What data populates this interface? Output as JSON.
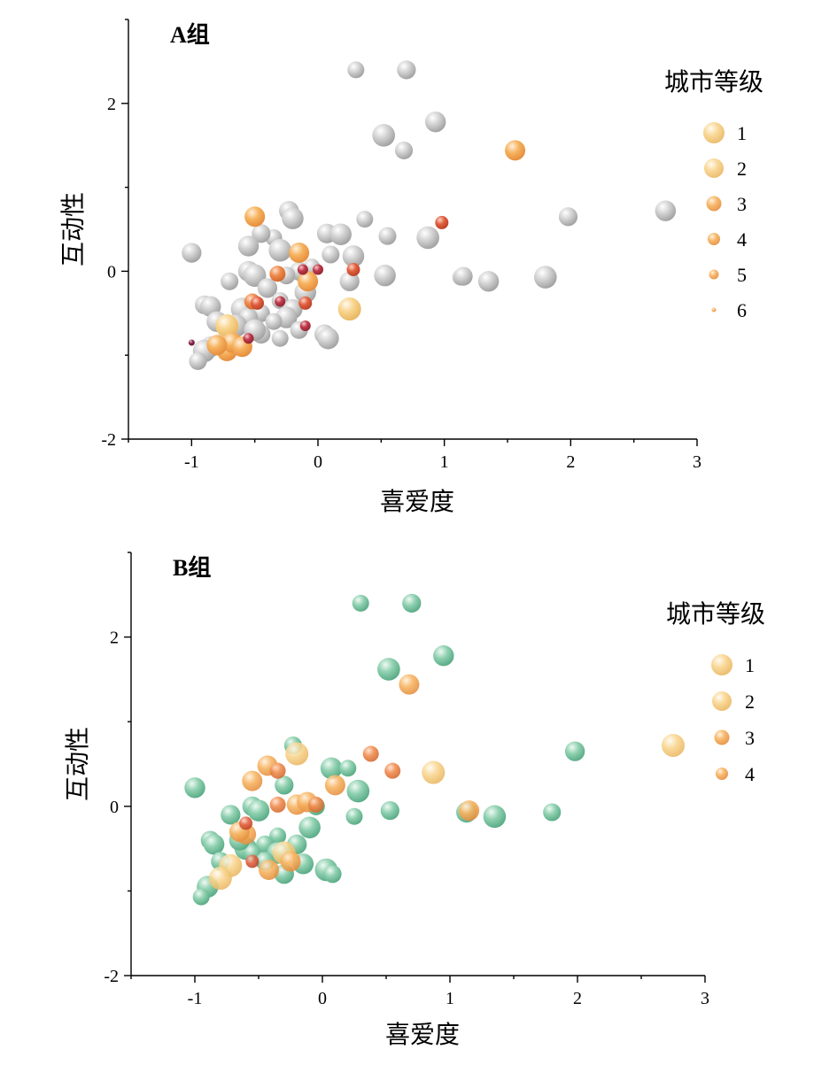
{
  "colors": {
    "gray": "#c4c4c4",
    "green": "#8fd0b0",
    "level_colors": [
      "#f8d48c",
      "#f6b25e",
      "#ef8a4c",
      "#e0603f",
      "#c0394a",
      "#8e2a4e"
    ]
  },
  "chart_data": [
    {
      "type": "scatter",
      "title": "A组",
      "xlabel": "喜爱度",
      "ylabel": "互动性",
      "xlim": [
        -1.5,
        3
      ],
      "ylim": [
        -2,
        3
      ],
      "x_ticks": [
        "-1",
        "0",
        "1",
        "2",
        "3"
      ],
      "y_ticks": [
        "-2",
        "0",
        "2"
      ],
      "legend": {
        "title": "城市等级",
        "position": "right",
        "items": [
          "1",
          "2",
          "3",
          "4",
          "5",
          "6"
        ]
      },
      "background_points": [
        {
          "x": 0.3,
          "y": 2.4
        },
        {
          "x": 0.7,
          "y": 2.4
        },
        {
          "x": 0.93,
          "y": 1.78
        },
        {
          "x": 0.52,
          "y": 1.62
        },
        {
          "x": 0.68,
          "y": 1.44
        },
        {
          "x": -0.23,
          "y": 0.72
        },
        {
          "x": -0.2,
          "y": 0.63
        },
        {
          "x": 0.37,
          "y": 0.62
        },
        {
          "x": 1.98,
          "y": 0.65
        },
        {
          "x": 2.75,
          "y": 0.72
        },
        {
          "x": 0.87,
          "y": 0.4
        },
        {
          "x": 0.55,
          "y": 0.42
        },
        {
          "x": 0.07,
          "y": 0.45
        },
        {
          "x": 0.18,
          "y": 0.44
        },
        {
          "x": -0.35,
          "y": 0.4
        },
        {
          "x": -0.45,
          "y": 0.45
        },
        {
          "x": -0.55,
          "y": 0.3
        },
        {
          "x": -0.3,
          "y": 0.25
        },
        {
          "x": 0.1,
          "y": 0.2
        },
        {
          "x": -1.0,
          "y": 0.22
        },
        {
          "x": 0.28,
          "y": 0.18
        },
        {
          "x": -0.05,
          "y": 0.05
        },
        {
          "x": -0.15,
          "y": 0.0
        },
        {
          "x": -0.55,
          "y": 0.0
        },
        {
          "x": -0.5,
          "y": -0.05
        },
        {
          "x": -0.25,
          "y": -0.05
        },
        {
          "x": 0.25,
          "y": -0.12
        },
        {
          "x": 0.53,
          "y": -0.05
        },
        {
          "x": 1.13,
          "y": -0.07
        },
        {
          "x": 1.15,
          "y": -0.06
        },
        {
          "x": 1.35,
          "y": -0.12
        },
        {
          "x": 1.8,
          "y": -0.07
        },
        {
          "x": -0.7,
          "y": -0.12
        },
        {
          "x": -0.4,
          "y": -0.2
        },
        {
          "x": -0.1,
          "y": -0.25
        },
        {
          "x": -0.3,
          "y": -0.35
        },
        {
          "x": -0.9,
          "y": -0.4
        },
        {
          "x": -0.85,
          "y": -0.42
        },
        {
          "x": -0.6,
          "y": -0.45
        },
        {
          "x": -0.45,
          "y": -0.5
        },
        {
          "x": -0.2,
          "y": -0.45
        },
        {
          "x": -0.25,
          "y": -0.55
        },
        {
          "x": -0.35,
          "y": -0.6
        },
        {
          "x": -0.55,
          "y": -0.55
        },
        {
          "x": -0.8,
          "y": -0.6
        },
        {
          "x": -0.65,
          "y": -0.65
        },
        {
          "x": -0.15,
          "y": -0.7
        },
        {
          "x": 0.05,
          "y": -0.75
        },
        {
          "x": 0.08,
          "y": -0.8
        },
        {
          "x": -0.3,
          "y": -0.8
        },
        {
          "x": -0.45,
          "y": -0.75
        },
        {
          "x": -0.85,
          "y": -0.9
        },
        {
          "x": -0.9,
          "y": -0.95
        },
        {
          "x": -0.95,
          "y": -1.07
        },
        {
          "x": -0.75,
          "y": -0.85
        },
        {
          "x": -0.5,
          "y": -0.7
        }
      ],
      "level_points": [
        {
          "x": 0.25,
          "y": -0.45,
          "level": 1
        },
        {
          "x": -0.72,
          "y": -0.65,
          "level": 1
        },
        {
          "x": -0.5,
          "y": 0.65,
          "level": 2
        },
        {
          "x": 1.56,
          "y": 1.44,
          "level": 2
        },
        {
          "x": -0.15,
          "y": 0.22,
          "level": 2
        },
        {
          "x": -0.08,
          "y": -0.12,
          "level": 2
        },
        {
          "x": -0.72,
          "y": -0.95,
          "level": 2
        },
        {
          "x": -0.68,
          "y": -0.85,
          "level": 2
        },
        {
          "x": -0.6,
          "y": -0.9,
          "level": 2
        },
        {
          "x": -0.8,
          "y": -0.88,
          "level": 2
        },
        {
          "x": -0.32,
          "y": -0.03,
          "level": 3
        },
        {
          "x": -0.52,
          "y": -0.36,
          "level": 3
        },
        {
          "x": 0.98,
          "y": 0.58,
          "level": 4
        },
        {
          "x": 0.28,
          "y": 0.02,
          "level": 4
        },
        {
          "x": -0.48,
          "y": -0.38,
          "level": 4
        },
        {
          "x": -0.1,
          "y": -0.38,
          "level": 4
        },
        {
          "x": -0.12,
          "y": 0.02,
          "level": 5
        },
        {
          "x": 0.0,
          "y": 0.02,
          "level": 5
        },
        {
          "x": -0.3,
          "y": -0.36,
          "level": 5
        },
        {
          "x": -0.1,
          "y": -0.65,
          "level": 5
        },
        {
          "x": -0.55,
          "y": -0.8,
          "level": 5
        },
        {
          "x": -1.0,
          "y": -0.85,
          "level": 6
        }
      ]
    },
    {
      "type": "scatter",
      "title": "B组",
      "xlabel": "喜爱度",
      "ylabel": "互动性",
      "xlim": [
        -1.5,
        3
      ],
      "ylim": [
        -2,
        3
      ],
      "x_ticks": [
        "-1",
        "0",
        "1",
        "2",
        "3"
      ],
      "y_ticks": [
        "-2",
        "0",
        "2"
      ],
      "legend": {
        "title": "城市等级",
        "position": "right",
        "items": [
          "1",
          "2",
          "3",
          "4"
        ]
      },
      "background_points": [
        {
          "x": 0.3,
          "y": 2.4
        },
        {
          "x": 0.7,
          "y": 2.4
        },
        {
          "x": 0.95,
          "y": 1.78
        },
        {
          "x": 0.52,
          "y": 1.62
        },
        {
          "x": -0.23,
          "y": 0.72
        },
        {
          "x": 1.98,
          "y": 0.65
        },
        {
          "x": 0.07,
          "y": 0.45
        },
        {
          "x": 0.2,
          "y": 0.45
        },
        {
          "x": -0.3,
          "y": 0.25
        },
        {
          "x": -1.0,
          "y": 0.22
        },
        {
          "x": 0.28,
          "y": 0.18
        },
        {
          "x": -0.05,
          "y": 0.0
        },
        {
          "x": -0.55,
          "y": 0.0
        },
        {
          "x": -0.5,
          "y": -0.05
        },
        {
          "x": 0.25,
          "y": -0.12
        },
        {
          "x": 0.53,
          "y": -0.05
        },
        {
          "x": 1.13,
          "y": -0.07
        },
        {
          "x": 1.35,
          "y": -0.12
        },
        {
          "x": 1.8,
          "y": -0.07
        },
        {
          "x": -0.72,
          "y": -0.1
        },
        {
          "x": -0.1,
          "y": -0.25
        },
        {
          "x": -0.35,
          "y": -0.35
        },
        {
          "x": -0.88,
          "y": -0.4
        },
        {
          "x": -0.85,
          "y": -0.45
        },
        {
          "x": -0.6,
          "y": -0.5
        },
        {
          "x": -0.45,
          "y": -0.45
        },
        {
          "x": -0.2,
          "y": -0.45
        },
        {
          "x": -0.35,
          "y": -0.55
        },
        {
          "x": -0.55,
          "y": -0.55
        },
        {
          "x": -0.8,
          "y": -0.65
        },
        {
          "x": -0.15,
          "y": -0.68
        },
        {
          "x": 0.03,
          "y": -0.75
        },
        {
          "x": 0.08,
          "y": -0.8
        },
        {
          "x": -0.3,
          "y": -0.8
        },
        {
          "x": -0.9,
          "y": -0.95
        },
        {
          "x": -0.95,
          "y": -1.07
        },
        {
          "x": -0.45,
          "y": -0.65
        },
        {
          "x": -0.65,
          "y": -0.4
        }
      ],
      "level_points": [
        {
          "x": 2.75,
          "y": 0.72,
          "level": 1
        },
        {
          "x": -0.2,
          "y": 0.62,
          "level": 1
        },
        {
          "x": 0.87,
          "y": 0.4,
          "level": 1
        },
        {
          "x": -0.72,
          "y": -0.7,
          "level": 1
        },
        {
          "x": -0.8,
          "y": -0.85,
          "level": 1
        },
        {
          "x": -0.3,
          "y": -0.55,
          "level": 1
        },
        {
          "x": 0.68,
          "y": 1.44,
          "level": 2
        },
        {
          "x": -0.43,
          "y": 0.48,
          "level": 2
        },
        {
          "x": -0.55,
          "y": 0.3,
          "level": 2
        },
        {
          "x": 0.1,
          "y": 0.25,
          "level": 2
        },
        {
          "x": -0.2,
          "y": 0.02,
          "level": 2
        },
        {
          "x": -0.12,
          "y": 0.05,
          "level": 2
        },
        {
          "x": 1.15,
          "y": -0.05,
          "level": 2
        },
        {
          "x": -0.6,
          "y": -0.33,
          "level": 2
        },
        {
          "x": -0.42,
          "y": -0.75,
          "level": 2
        },
        {
          "x": -0.65,
          "y": -0.3,
          "level": 2
        },
        {
          "x": -0.25,
          "y": -0.65,
          "level": 2
        },
        {
          "x": 0.38,
          "y": 0.62,
          "level": 3
        },
        {
          "x": 0.55,
          "y": 0.42,
          "level": 3
        },
        {
          "x": -0.35,
          "y": 0.02,
          "level": 3
        },
        {
          "x": -0.35,
          "y": 0.42,
          "level": 3
        },
        {
          "x": -0.05,
          "y": 0.02,
          "level": 3
        },
        {
          "x": -0.55,
          "y": -0.65,
          "level": 4
        },
        {
          "x": -0.6,
          "y": -0.2,
          "level": 4
        }
      ]
    }
  ]
}
